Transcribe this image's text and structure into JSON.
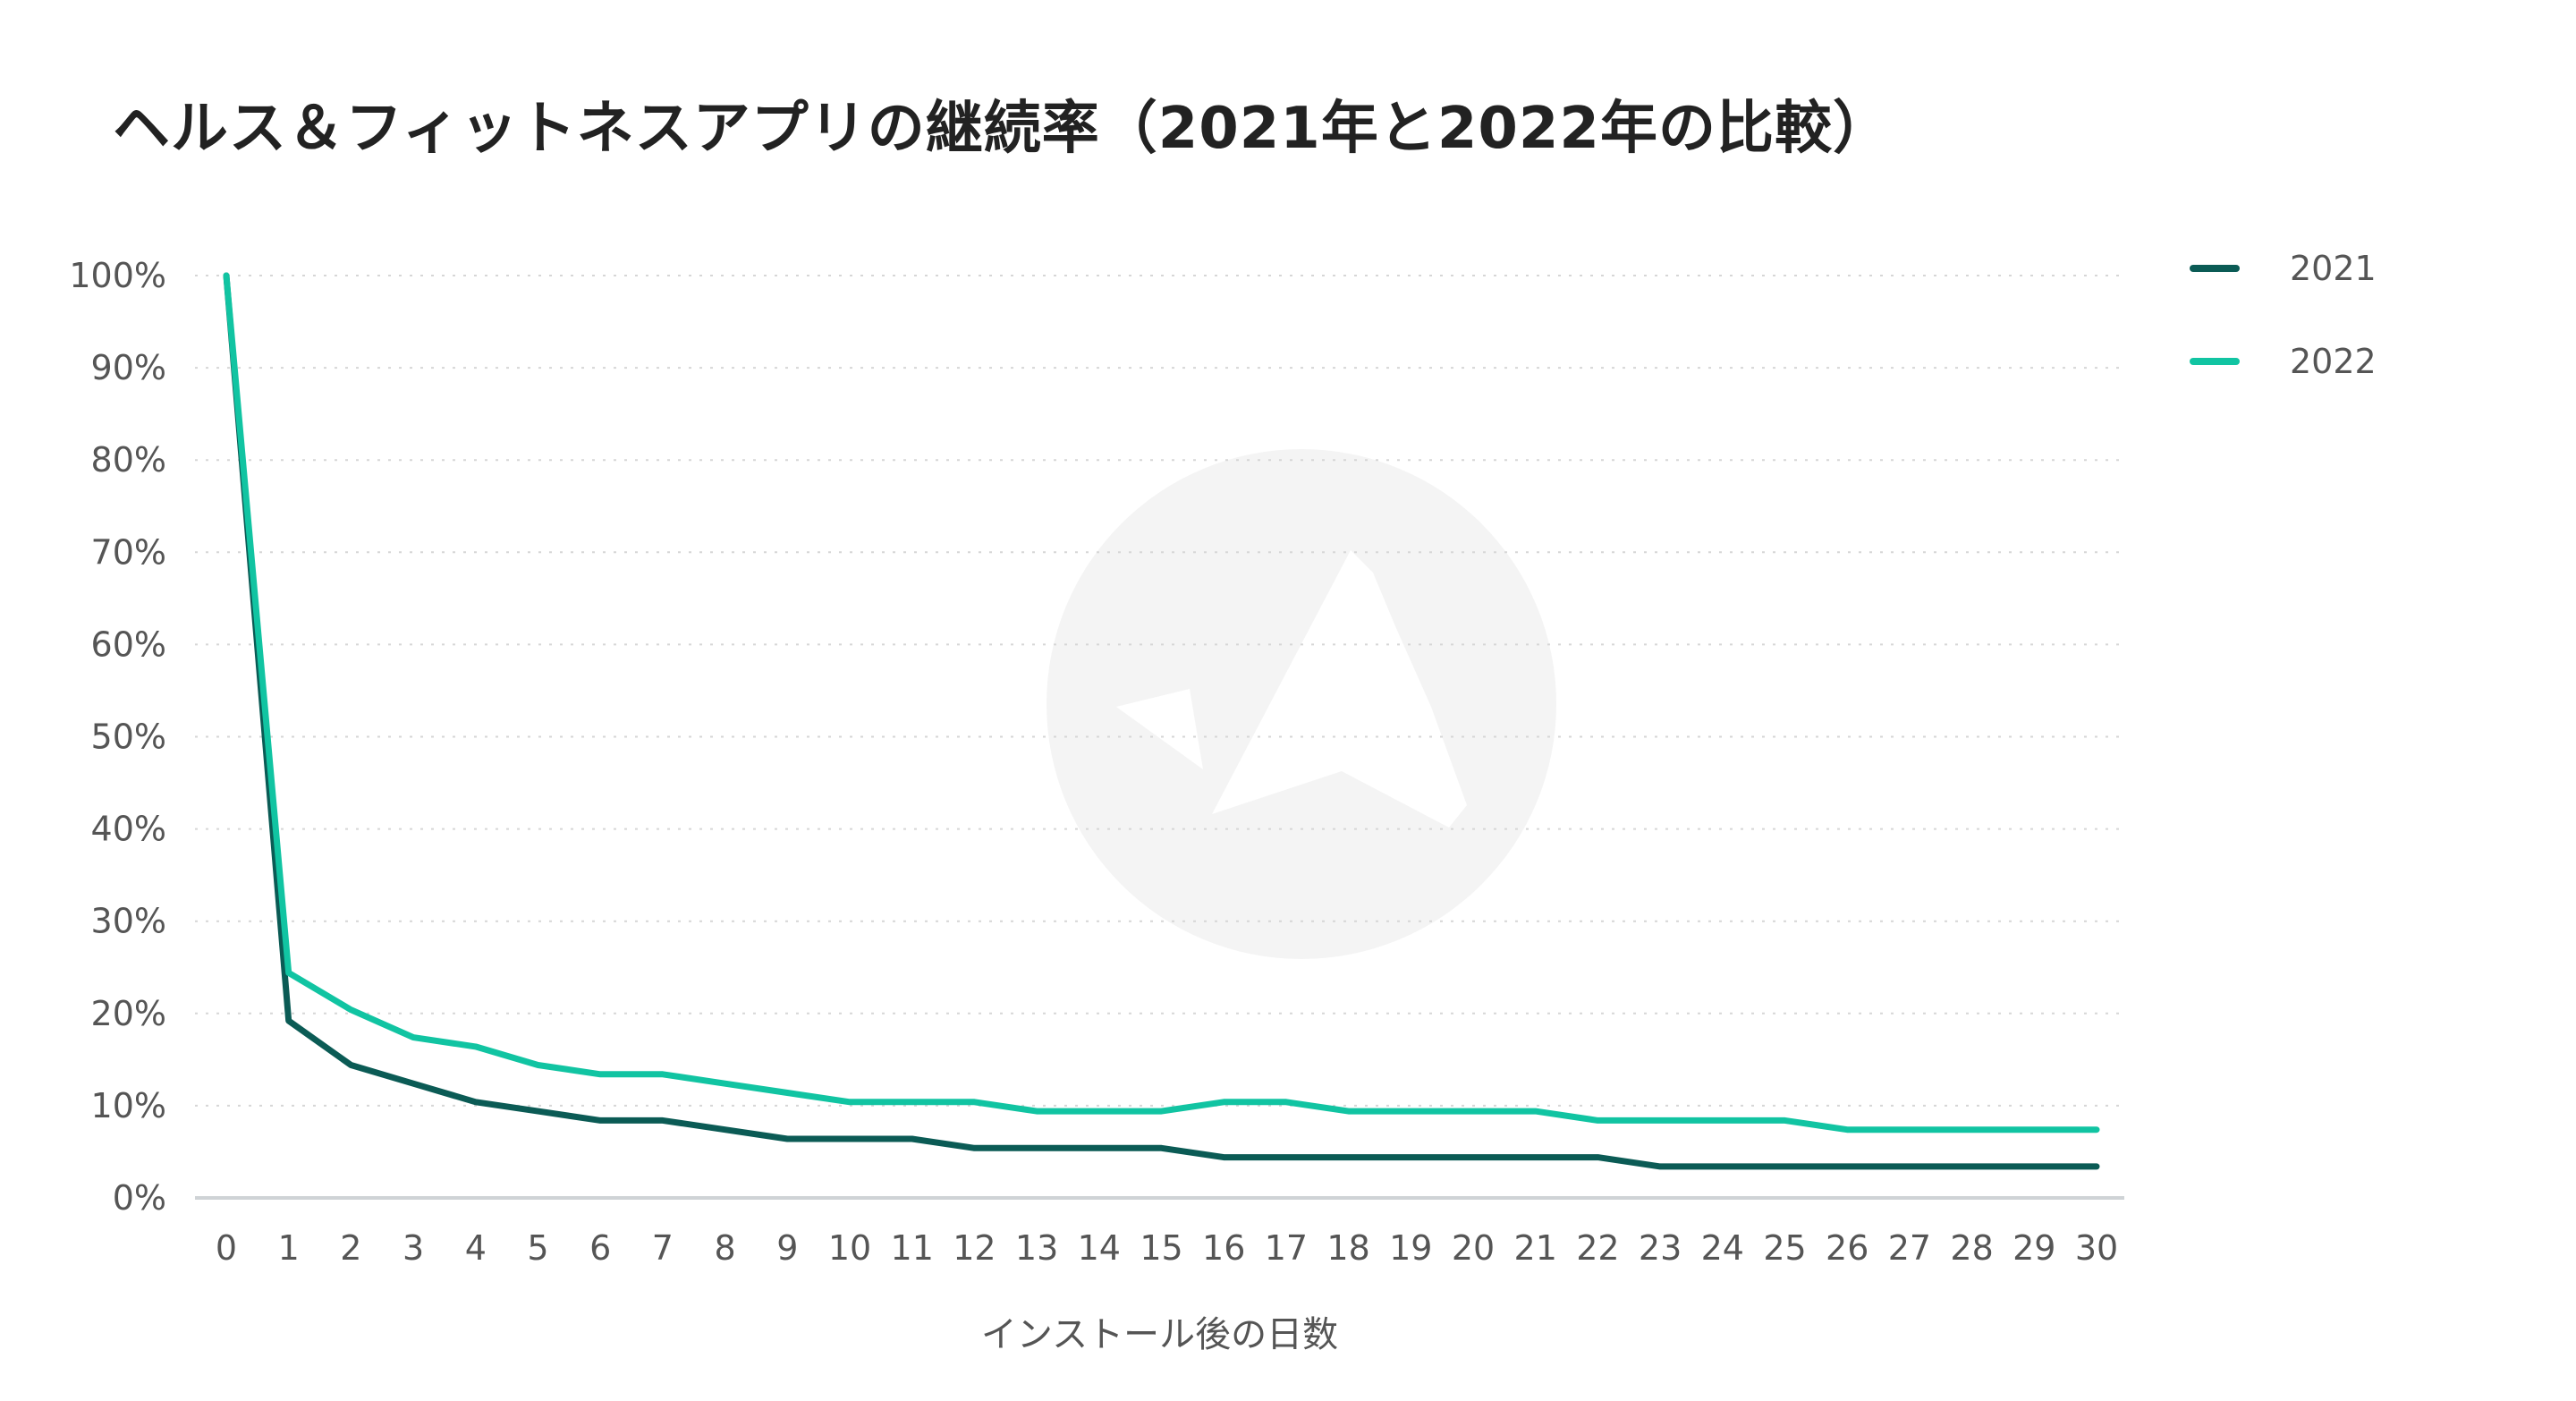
{
  "chart_data": {
    "type": "line",
    "title": "ヘルス＆フィットネスアプリの継続率（2021年と2022年の比較）",
    "xlabel": "インストール後の日数",
    "ylabel": "",
    "x": [
      0,
      1,
      2,
      3,
      4,
      5,
      6,
      7,
      8,
      9,
      10,
      11,
      12,
      13,
      14,
      15,
      16,
      17,
      18,
      19,
      20,
      21,
      22,
      23,
      24,
      25,
      26,
      27,
      28,
      29,
      30
    ],
    "x_tick_labels": [
      "0",
      "1",
      "2",
      "3",
      "4",
      "5",
      "6",
      "7",
      "8",
      "9",
      "10",
      "11",
      "12",
      "13",
      "14",
      "15",
      "16",
      "17",
      "18",
      "19",
      "20",
      "21",
      "22",
      "23",
      "24",
      "25",
      "26",
      "27",
      "28",
      "29",
      "30"
    ],
    "y_tick_labels": [
      "0%",
      "10%",
      "20%",
      "30%",
      "40%",
      "50%",
      "60%",
      "70%",
      "80%",
      "90%",
      "100%"
    ],
    "ylim": [
      0,
      100
    ],
    "grid": "horizontal dotted",
    "legend_position": "top-right",
    "series": [
      {
        "name": "2021",
        "color": "#0b5b55",
        "values": [
          100,
          19.2,
          14.4,
          12.4,
          10.4,
          9.4,
          8.4,
          8.4,
          7.4,
          6.4,
          6.4,
          6.4,
          5.4,
          5.4,
          5.4,
          5.4,
          4.4,
          4.4,
          4.4,
          4.4,
          4.4,
          4.4,
          4.4,
          3.4,
          3.4,
          3.4,
          3.4,
          3.4,
          3.4,
          3.4,
          3.4
        ]
      },
      {
        "name": "2022",
        "color": "#11c4a2",
        "values": [
          100,
          24.4,
          20.4,
          17.4,
          16.4,
          14.4,
          13.4,
          13.4,
          12.4,
          11.4,
          10.4,
          10.4,
          10.4,
          9.4,
          9.4,
          9.4,
          10.4,
          10.4,
          9.4,
          9.4,
          9.4,
          9.4,
          8.4,
          8.4,
          8.4,
          8.4,
          7.4,
          7.4,
          7.4,
          7.4,
          7.4
        ]
      }
    ]
  }
}
